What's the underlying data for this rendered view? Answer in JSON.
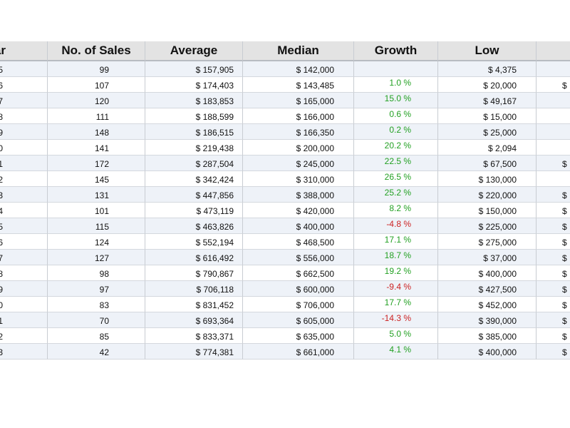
{
  "table": {
    "header": [
      "ar",
      "No. of Sales",
      "Average",
      "Median",
      "Growth",
      "Low",
      null
    ],
    "rows": [
      [
        "5",
        "99",
        "$ 157,905",
        "$ 142,000",
        null,
        "$ 4,375",
        null
      ],
      [
        "6",
        "107",
        "$ 174,403",
        "$ 143,485",
        "1.0 %",
        "$ 20,000",
        "$"
      ],
      [
        "7",
        "120",
        "$ 183,853",
        "$ 165,000",
        "15.0 %",
        "$ 49,167",
        null
      ],
      [
        "8",
        "111",
        "$ 188,599",
        "$ 166,000",
        "0.6 %",
        "$ 15,000",
        null
      ],
      [
        "9",
        "148",
        "$ 186,515",
        "$ 166,350",
        "0.2 %",
        "$ 25,000",
        null
      ],
      [
        "0",
        "141",
        "$ 219,438",
        "$ 200,000",
        "20.2 %",
        "$ 2,094",
        null
      ],
      [
        "1",
        "172",
        "$ 287,504",
        "$ 245,000",
        "22.5 %",
        "$ 67,500",
        "$"
      ],
      [
        "2",
        "145",
        "$ 342,424",
        "$ 310,000",
        "26.5 %",
        "$ 130,000",
        null
      ],
      [
        "3",
        "131",
        "$ 447,856",
        "$ 388,000",
        "25.2 %",
        "$ 220,000",
        "$"
      ],
      [
        "4",
        "101",
        "$ 473,119",
        "$ 420,000",
        "8.2 %",
        "$ 150,000",
        "$"
      ],
      [
        "5",
        "115",
        "$ 463,826",
        "$ 400,000",
        "-4.8 %",
        "$ 225,000",
        "$"
      ],
      [
        "6",
        "124",
        "$ 552,194",
        "$ 468,500",
        "17.1 %",
        "$ 275,000",
        "$"
      ],
      [
        "7",
        "127",
        "$ 616,492",
        "$ 556,000",
        "18.7 %",
        "$ 37,000",
        "$"
      ],
      [
        "8",
        "98",
        "$ 790,867",
        "$ 662,500",
        "19.2 %",
        "$ 400,000",
        "$"
      ],
      [
        "9",
        "97",
        "$ 706,118",
        "$ 600,000",
        "-9.4 %",
        "$ 427,500",
        "$"
      ],
      [
        "0",
        "83",
        "$ 831,452",
        "$ 706,000",
        "17.7 %",
        "$ 452,000",
        "$"
      ],
      [
        "1",
        "70",
        "$ 693,364",
        "$ 605,000",
        "-14.3 %",
        "$ 390,000",
        "$"
      ],
      [
        "2",
        "85",
        "$ 833,371",
        "$ 635,000",
        "5.0 %",
        "$ 385,000",
        "$"
      ],
      [
        "3",
        "42",
        "$ 774,381",
        "$ 661,000",
        "4.1 %",
        "$ 400,000",
        "$"
      ]
    ]
  }
}
